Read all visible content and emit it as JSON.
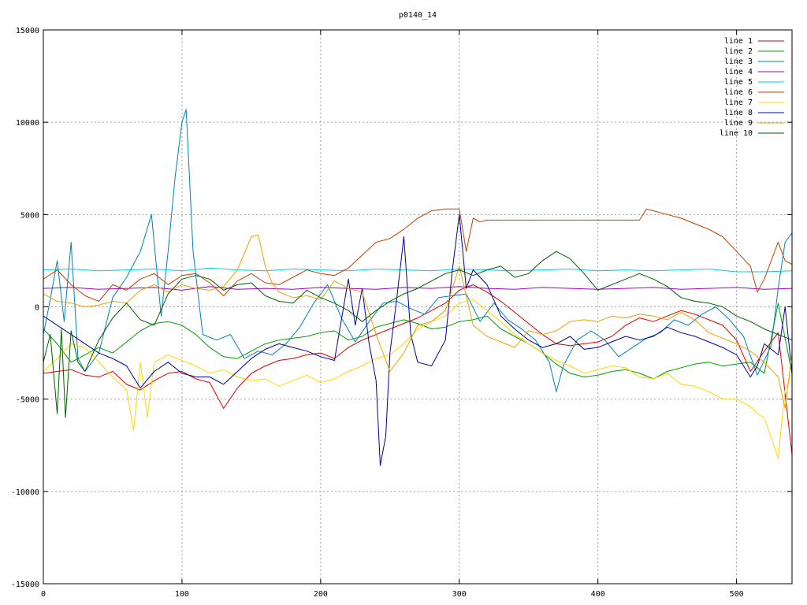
{
  "chart_data": {
    "type": "line",
    "title": "p0140_14",
    "xlabel": "",
    "ylabel": "",
    "xlim": [
      0,
      540
    ],
    "ylim": [
      -15000,
      15000
    ],
    "xticks": [
      0,
      100,
      200,
      300,
      400,
      500
    ],
    "yticks": [
      -15000,
      -10000,
      -5000,
      0,
      5000,
      10000,
      15000
    ],
    "grid": true,
    "legend_position": "top-right",
    "series": [
      {
        "name": "line 1",
        "color": "#e00000",
        "x": [
          0,
          10,
          20,
          30,
          40,
          50,
          60,
          70,
          80,
          90,
          100,
          110,
          120,
          130,
          140,
          150,
          160,
          170,
          180,
          190,
          200,
          210,
          220,
          230,
          240,
          250,
          260,
          270,
          280,
          290,
          300,
          310,
          320,
          330,
          340,
          350,
          360,
          370,
          380,
          390,
          400,
          410,
          420,
          430,
          440,
          450,
          460,
          470,
          480,
          490,
          500,
          510,
          520,
          530,
          540
        ],
        "y": [
          -3600,
          -3500,
          -3400,
          -3700,
          -3800,
          -3500,
          -4200,
          -4500,
          -4000,
          -3600,
          -3500,
          -3900,
          -4100,
          -5500,
          -4400,
          -3600,
          -3200,
          -2900,
          -2800,
          -2600,
          -2500,
          -2800,
          -2200,
          -1800,
          -1500,
          -1200,
          -900,
          -600,
          -200,
          200,
          900,
          1200,
          800,
          300,
          -300,
          -900,
          -1500,
          -2000,
          -2100,
          -2000,
          -1900,
          -1600,
          -1000,
          -600,
          -800,
          -500,
          -200,
          -400,
          -700,
          -1000,
          -1800,
          -3500,
          -2400,
          -1400,
          -8000
        ]
      },
      {
        "name": "line 2",
        "color": "#00a000",
        "x": [
          0,
          10,
          20,
          30,
          40,
          50,
          60,
          70,
          80,
          90,
          100,
          110,
          120,
          130,
          140,
          150,
          160,
          170,
          180,
          190,
          200,
          210,
          220,
          230,
          240,
          250,
          260,
          270,
          280,
          290,
          300,
          310,
          320,
          330,
          340,
          350,
          360,
          370,
          380,
          390,
          400,
          410,
          420,
          430,
          440,
          450,
          460,
          470,
          480,
          490,
          500,
          510,
          520,
          530,
          540
        ],
        "y": [
          -1200,
          -2000,
          -3000,
          -2600,
          -2200,
          -2500,
          -1900,
          -1300,
          -900,
          -800,
          -1000,
          -1500,
          -2200,
          -2700,
          -2800,
          -2400,
          -2000,
          -1800,
          -1700,
          -1600,
          -1400,
          -1300,
          -1800,
          -1600,
          -1100,
          -900,
          -700,
          -900,
          -1200,
          -1100,
          -800,
          -700,
          -500,
          -1200,
          -1600,
          -2000,
          -2500,
          -3100,
          -3600,
          -3800,
          -3700,
          -3500,
          -3400,
          -3600,
          -3900,
          -3500,
          -3300,
          -3100,
          -3000,
          -3200,
          -3100,
          -3000,
          -3600,
          200,
          -3600
        ]
      },
      {
        "name": "line 3",
        "color": "#0080c0",
        "x": [
          0,
          5,
          10,
          15,
          20,
          25,
          30,
          40,
          50,
          60,
          70,
          78,
          85,
          90,
          95,
          100,
          103,
          108,
          115,
          125,
          135,
          145,
          155,
          165,
          175,
          185,
          195,
          205,
          215,
          225,
          235,
          245,
          255,
          265,
          275,
          285,
          295,
          305,
          315,
          325,
          335,
          345,
          355,
          365,
          370,
          375,
          385,
          395,
          405,
          415,
          425,
          435,
          445,
          455,
          465,
          475,
          485,
          495,
          505,
          515,
          525,
          530,
          535,
          540
        ],
        "y": [
          -1500,
          400,
          2500,
          -800,
          3500,
          -2800,
          -3500,
          -2500,
          500,
          1600,
          3000,
          5000,
          -500,
          3000,
          7000,
          10000,
          10700,
          3000,
          -1500,
          -1800,
          -1500,
          -2800,
          -2400,
          -2600,
          -2000,
          -1100,
          200,
          1200,
          -600,
          -1900,
          -800,
          200,
          300,
          -100,
          -400,
          500,
          600,
          700,
          -800,
          200,
          -700,
          -1200,
          -1800,
          -3000,
          -4600,
          -3200,
          -1800,
          -1300,
          -1800,
          -2700,
          -2200,
          -1700,
          -1400,
          -700,
          -1000,
          -400,
          0,
          -700,
          -1600,
          -3700,
          -2100,
          1000,
          3500,
          4000
        ]
      },
      {
        "name": "line 4",
        "color": "#a000c0",
        "x": [
          0,
          20,
          40,
          60,
          80,
          100,
          120,
          140,
          160,
          180,
          200,
          220,
          240,
          260,
          280,
          300,
          320,
          340,
          360,
          380,
          400,
          420,
          440,
          460,
          480,
          500,
          520,
          540
        ],
        "y": [
          1000,
          1050,
          950,
          1000,
          1050,
          900,
          1100,
          950,
          1000,
          950,
          1050,
          1000,
          950,
          1050,
          1000,
          1100,
          1000,
          950,
          1050,
          1000,
          950,
          1000,
          1050,
          950,
          1000,
          1050,
          950,
          1000
        ]
      },
      {
        "name": "line 5",
        "color": "#00d0d0",
        "x": [
          0,
          20,
          40,
          60,
          80,
          100,
          120,
          140,
          160,
          180,
          200,
          220,
          240,
          260,
          280,
          300,
          320,
          340,
          360,
          380,
          400,
          420,
          440,
          460,
          480,
          500,
          520,
          540
        ],
        "y": [
          2000,
          2050,
          1950,
          2000,
          2050,
          1950,
          2100,
          2000,
          1950,
          2050,
          2000,
          1950,
          2050,
          2000,
          1950,
          2050,
          2000,
          1950,
          2000,
          2050,
          1950,
          2000,
          1950,
          2000,
          2050,
          1900,
          1900,
          1950
        ]
      },
      {
        "name": "line 6",
        "color": "#c04000",
        "x": [
          0,
          10,
          20,
          30,
          40,
          50,
          60,
          70,
          80,
          90,
          100,
          110,
          120,
          130,
          140,
          150,
          160,
          170,
          180,
          190,
          200,
          210,
          220,
          230,
          240,
          250,
          260,
          270,
          280,
          290,
          300,
          305,
          310,
          315,
          320,
          330,
          340,
          350,
          360,
          370,
          380,
          390,
          400,
          410,
          420,
          430,
          435,
          440,
          450,
          460,
          470,
          480,
          490,
          500,
          510,
          515,
          520,
          530,
          535,
          540
        ],
        "y": [
          1500,
          2000,
          1200,
          600,
          300,
          1200,
          900,
          1500,
          1800,
          1200,
          1700,
          1800,
          1300,
          600,
          1400,
          1800,
          1300,
          1200,
          1600,
          2000,
          1800,
          1700,
          2100,
          2800,
          3500,
          3700,
          4200,
          4800,
          5200,
          5300,
          5300,
          3000,
          4800,
          4600,
          4700,
          4700,
          4700,
          4700,
          4700,
          4700,
          4700,
          4700,
          4700,
          4700,
          4700,
          4700,
          5300,
          5200,
          5000,
          4800,
          4500,
          4200,
          3800,
          3000,
          2200,
          800,
          1500,
          3500,
          2500,
          2300
        ]
      },
      {
        "name": "line 7",
        "color": "#ffd700",
        "x": [
          0,
          10,
          20,
          30,
          40,
          50,
          60,
          65,
          70,
          75,
          80,
          90,
          100,
          110,
          120,
          130,
          140,
          150,
          160,
          170,
          180,
          190,
          200,
          210,
          220,
          230,
          240,
          250,
          260,
          270,
          280,
          290,
          300,
          310,
          320,
          330,
          340,
          350,
          360,
          370,
          380,
          390,
          400,
          410,
          420,
          430,
          440,
          450,
          460,
          470,
          480,
          490,
          500,
          510,
          515,
          520,
          530,
          535,
          540
        ],
        "y": [
          -3500,
          -2800,
          -2000,
          -2200,
          -3000,
          -3800,
          -4500,
          -6700,
          -3000,
          -6000,
          -3000,
          -2600,
          -2900,
          -3200,
          -3600,
          -3400,
          -3800,
          -4000,
          -3900,
          -4300,
          -4000,
          -3700,
          -4100,
          -3900,
          -3500,
          -3200,
          -2800,
          -2600,
          -2000,
          -1200,
          -800,
          -500,
          200,
          400,
          -200,
          -800,
          -1500,
          -2000,
          -2500,
          -2900,
          -3200,
          -3600,
          -3400,
          -3200,
          -3300,
          -3800,
          -3900,
          -3600,
          -4200,
          -4300,
          -4600,
          -5000,
          -5000,
          -5400,
          -5800,
          -6000,
          -8200,
          -4500,
          -3600
        ]
      },
      {
        "name": "line 8",
        "color": "#0000a0",
        "x": [
          0,
          10,
          20,
          30,
          40,
          50,
          60,
          70,
          80,
          90,
          100,
          110,
          120,
          130,
          140,
          150,
          160,
          170,
          180,
          190,
          200,
          210,
          220,
          225,
          230,
          235,
          240,
          243,
          247,
          250,
          255,
          260,
          265,
          270,
          280,
          290,
          295,
          300,
          305,
          310,
          320,
          330,
          340,
          350,
          360,
          370,
          380,
          390,
          400,
          410,
          420,
          430,
          440,
          450,
          460,
          470,
          480,
          490,
          500,
          510,
          515,
          520,
          530,
          535,
          540
        ],
        "y": [
          -500,
          -1000,
          -1500,
          -2000,
          -2500,
          -2800,
          -3200,
          -4400,
          -3500,
          -3000,
          -3600,
          -3800,
          -3800,
          -4200,
          -3500,
          -2800,
          -2300,
          -2000,
          -2200,
          -2400,
          -2700,
          -2900,
          1500,
          -1000,
          1000,
          -2000,
          -4000,
          -8600,
          -7000,
          -2500,
          500,
          3800,
          -1500,
          -3000,
          -3200,
          -1800,
          2000,
          5000,
          1000,
          2000,
          1200,
          -500,
          -1200,
          -1800,
          -2200,
          -2000,
          -1600,
          -2300,
          -2200,
          -1900,
          -1600,
          -1800,
          -1600,
          -1100,
          -1400,
          -1600,
          -1900,
          -2200,
          -2600,
          -3800,
          -3200,
          -2000,
          -2600,
          0,
          -3600
        ]
      },
      {
        "name": "line 9",
        "color": "#f0a000",
        "x": [
          0,
          10,
          20,
          30,
          40,
          50,
          60,
          70,
          80,
          90,
          100,
          110,
          120,
          130,
          140,
          150,
          155,
          160,
          165,
          170,
          180,
          190,
          200,
          210,
          220,
          230,
          240,
          250,
          260,
          270,
          280,
          290,
          300,
          310,
          320,
          330,
          340,
          350,
          360,
          370,
          380,
          390,
          400,
          410,
          420,
          430,
          440,
          450,
          460,
          470,
          480,
          490,
          500,
          510,
          520,
          530,
          535,
          540
        ],
        "y": [
          700,
          300,
          200,
          0,
          100,
          300,
          200,
          900,
          1200,
          800,
          1200,
          1000,
          900,
          1100,
          2000,
          3800,
          3900,
          2200,
          1300,
          800,
          500,
          600,
          400,
          1400,
          1000,
          800,
          -1500,
          -3500,
          -2500,
          -1000,
          -800,
          -200,
          2200,
          -1000,
          -1600,
          -1900,
          -2200,
          -1300,
          -1500,
          -1300,
          -800,
          -700,
          -800,
          -500,
          -600,
          -400,
          -500,
          -700,
          -300,
          -700,
          -1400,
          -1700,
          -2000,
          -2400,
          -3000,
          -3800,
          -5500,
          -2500
        ]
      },
      {
        "name": "line 10",
        "color": "#006000",
        "x": [
          0,
          5,
          10,
          13,
          16,
          20,
          25,
          30,
          40,
          50,
          60,
          70,
          80,
          90,
          100,
          110,
          120,
          130,
          140,
          150,
          160,
          170,
          180,
          190,
          200,
          210,
          220,
          230,
          240,
          250,
          260,
          270,
          280,
          290,
          300,
          310,
          320,
          330,
          340,
          350,
          360,
          370,
          380,
          390,
          400,
          410,
          420,
          430,
          440,
          450,
          460,
          470,
          480,
          490,
          500,
          510,
          520,
          530,
          540
        ],
        "y": [
          -3000,
          -1500,
          -5800,
          -1200,
          -6000,
          -1300,
          -3000,
          -3500,
          -1800,
          -600,
          200,
          -700,
          -1000,
          700,
          1500,
          1700,
          1500,
          900,
          1200,
          1300,
          600,
          300,
          200,
          900,
          500,
          200,
          -200,
          -800,
          -200,
          300,
          700,
          1000,
          1400,
          1800,
          2000,
          1700,
          2000,
          2200,
          1600,
          1800,
          2500,
          3000,
          2600,
          1800,
          900,
          1200,
          1500,
          1800,
          1500,
          1100,
          500,
          300,
          200,
          0,
          -500,
          -800,
          -1200,
          -1500,
          -1800
        ]
      }
    ]
  }
}
